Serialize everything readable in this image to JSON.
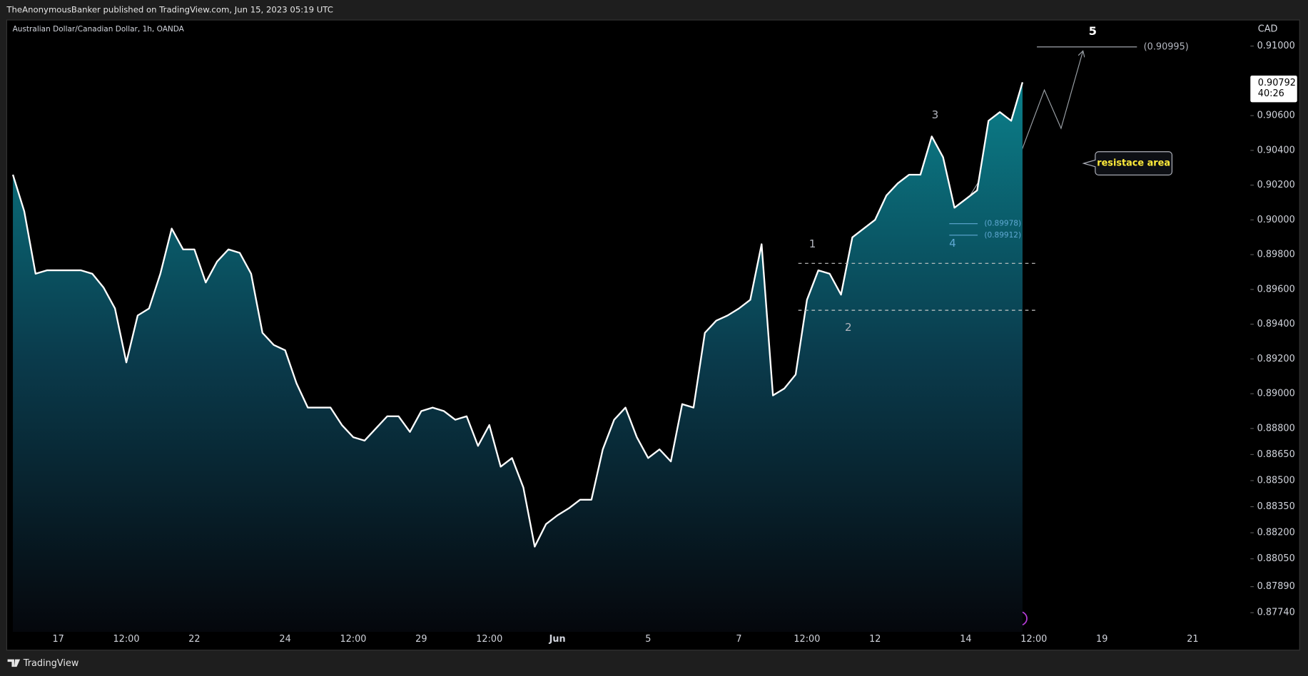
{
  "header": {
    "publisher": "TheAnonymousBanker published on TradingView.com, Jun 15, 2023 05:19 UTC"
  },
  "footer": {
    "brand": "TradingView"
  },
  "chart_data": {
    "type": "area",
    "title": "Australian Dollar/Canadian Dollar, 1h, OANDA",
    "y_axis_label": "CAD",
    "color": "#ffffff",
    "categories": [
      null,
      null,
      null,
      null,
      "17",
      null,
      null,
      null,
      null,
      null,
      "12:00",
      null,
      null,
      null,
      null,
      null,
      "22",
      null,
      null,
      null,
      null,
      null,
      null,
      null,
      "24",
      null,
      null,
      null,
      null,
      null,
      "12:00",
      null,
      null,
      null,
      null,
      null,
      "29",
      null,
      null,
      null,
      null,
      null,
      "12:00",
      null,
      null,
      null,
      null,
      null,
      "Jun",
      null,
      null,
      null,
      null,
      null,
      null,
      null,
      "5",
      null,
      null,
      null,
      null,
      null,
      null,
      null,
      "7",
      null,
      null,
      null,
      null,
      null,
      "12:00",
      null,
      null,
      null,
      null,
      null,
      "12",
      null,
      null,
      null,
      null,
      null,
      null,
      null,
      "14",
      null,
      null,
      null,
      null,
      null,
      "12:00",
      null,
      null,
      null,
      null,
      null,
      "19",
      null,
      null,
      null,
      null,
      null,
      null,
      null,
      "21",
      null,
      null,
      null,
      null,
      null
    ],
    "values": [
      0.9026,
      0.9005,
      0.8969,
      0.8971,
      0.8971,
      0.8971,
      0.8971,
      0.8969,
      0.8961,
      0.8949,
      0.8918,
      0.8945,
      0.8949,
      0.8969,
      0.8995,
      0.8983,
      0.8983,
      0.8964,
      0.8976,
      0.8983,
      0.8981,
      0.8969,
      0.8935,
      0.8928,
      0.8925,
      0.8906,
      0.8892,
      0.8892,
      0.8892,
      0.8882,
      0.8875,
      0.8873,
      0.888,
      0.8887,
      0.8887,
      0.8878,
      0.889,
      0.8892,
      0.889,
      0.8885,
      0.8887,
      0.887,
      0.8882,
      0.8858,
      0.8863,
      0.8846,
      0.8812,
      0.8825,
      0.883,
      0.8834,
      0.8839,
      0.8839,
      0.8868,
      0.8885,
      0.8892,
      0.8875,
      0.8863,
      0.8868,
      0.8861,
      0.8894,
      0.8892,
      0.8935,
      0.8942,
      0.8945,
      0.8949,
      0.8954,
      0.8986,
      0.8899,
      0.8903,
      0.8911,
      0.8954,
      0.8971,
      0.8969,
      0.8957,
      0.899,
      0.8995,
      0.9,
      0.9014,
      0.9021,
      0.9026,
      0.9026,
      0.9048,
      0.9036,
      0.9007,
      0.9012,
      0.9017,
      0.9057,
      0.9062,
      0.9057,
      0.90792,
      null,
      null,
      null,
      null,
      null,
      null,
      null,
      null,
      null,
      null,
      null,
      null,
      null,
      null,
      null,
      null,
      null,
      null,
      null,
      null
    ],
    "ylim": [
      0.8763,
      0.9115
    ],
    "yticks": [
      {
        "value": 0.91,
        "label": "0.91000"
      },
      {
        "value": 0.906,
        "label": "0.90600"
      },
      {
        "value": 0.904,
        "label": "0.90400"
      },
      {
        "value": 0.902,
        "label": "0.90200"
      },
      {
        "value": 0.9,
        "label": "0.90000"
      },
      {
        "value": 0.898,
        "label": "0.89800"
      },
      {
        "value": 0.896,
        "label": "0.89600"
      },
      {
        "value": 0.894,
        "label": "0.89400"
      },
      {
        "value": 0.892,
        "label": "0.89200"
      },
      {
        "value": 0.89,
        "label": "0.89000"
      },
      {
        "value": 0.888,
        "label": "0.88800"
      },
      {
        "value": 0.8865,
        "label": "0.88650"
      },
      {
        "value": 0.885,
        "label": "0.88500"
      },
      {
        "value": 0.8835,
        "label": "0.88350"
      },
      {
        "value": 0.882,
        "label": "0.88200"
      },
      {
        "value": 0.8805,
        "label": "0.88050"
      },
      {
        "value": 0.8789,
        "label": "0.87890"
      },
      {
        "value": 0.8774,
        "label": "0.87740"
      }
    ],
    "last_price": 0.90792,
    "countdown": "40:26",
    "dashed_levels": [
      0.8975,
      0.8948
    ],
    "levels": [
      {
        "value": 0.90995,
        "label": "(0.90995)"
      },
      {
        "value": 0.89978,
        "label": "(0.89978)"
      },
      {
        "value": 0.89912,
        "label": "(0.89912)"
      }
    ],
    "wave_labels": [
      "1",
      "2",
      "3",
      "4",
      "5"
    ],
    "callout": "resistace area"
  }
}
